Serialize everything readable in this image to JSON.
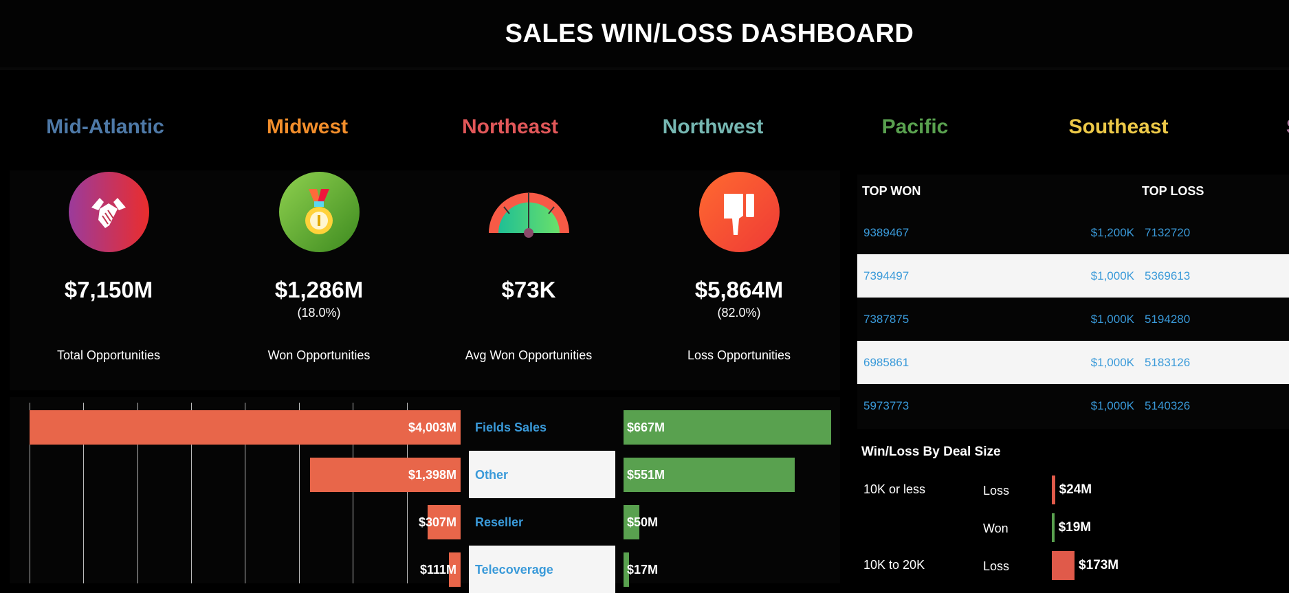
{
  "header": {
    "title": "SALES WIN/LOSS DASHBOARD"
  },
  "regions": [
    {
      "name": "Mid-Atlantic",
      "color": "#4e79a7"
    },
    {
      "name": "Midwest",
      "color": "#f28e2b"
    },
    {
      "name": "Northeast",
      "color": "#e15759"
    },
    {
      "name": "Northwest",
      "color": "#76b7b2"
    },
    {
      "name": "Pacific",
      "color": "#59a14f"
    },
    {
      "name": "Southeast",
      "color": "#edc948"
    },
    {
      "name": "So",
      "color": "#b07aa1"
    }
  ],
  "kpis": [
    {
      "icon": "handshake-icon",
      "value": "$7,150M",
      "pct": "",
      "label": "Total Opportunities"
    },
    {
      "icon": "medal-icon",
      "value": "$1,286M",
      "pct": "(18.0%)",
      "label": "Won Opportunities"
    },
    {
      "icon": "gauge-icon",
      "value": "$73K",
      "pct": "",
      "label": "Avg Won Opportunities"
    },
    {
      "icon": "thumbs-down-icon",
      "value": "$5,864M",
      "pct": "(82.0%)",
      "label": "Loss Opportunities"
    }
  ],
  "top_table": {
    "won_header": "TOP WON",
    "loss_header": "TOP LOSS",
    "rows": [
      {
        "won_id": "9389467",
        "won_value": "$1,200K",
        "loss_id": "7132720"
      },
      {
        "won_id": "7394497",
        "won_value": "$1,000K",
        "loss_id": "5369613"
      },
      {
        "won_id": "7387875",
        "won_value": "$1,000K",
        "loss_id": "5194280"
      },
      {
        "won_id": "6985861",
        "won_value": "$1,000K",
        "loss_id": "5183126"
      },
      {
        "won_id": "5973773",
        "won_value": "$1,000K",
        "loss_id": "5140326"
      }
    ]
  },
  "colors": {
    "loss": "#e8664a",
    "won": "#59a14f",
    "link": "#3a9ad9"
  },
  "chart_data": [
    {
      "type": "bar",
      "orientation": "horizontal",
      "title": "",
      "categories": [
        "Fields Sales",
        "Other",
        "Reseller",
        "Telecoverage"
      ],
      "series": [
        {
          "values": [
            4003,
            1398,
            307,
            111
          ],
          "labels": [
            "$4,003M",
            "$1,398M",
            "$307M",
            "$111M"
          ],
          "color": "#e8664a"
        },
        {
          "values": [
            667,
            551,
            50,
            17
          ],
          "labels": [
            "$667M",
            "$551M",
            "$50M",
            "$17M"
          ],
          "color": "#59a14f"
        }
      ],
      "grid": true
    },
    {
      "type": "bar",
      "orientation": "horizontal",
      "title": "Win/Loss By Deal Size",
      "groups": [
        {
          "name": "10K or less",
          "items": [
            {
              "status": "Loss",
              "value": 24,
              "label": "$24M"
            },
            {
              "status": "Won",
              "value": 19,
              "label": "$19M"
            }
          ]
        },
        {
          "name": "10K to 20K",
          "items": [
            {
              "status": "Loss",
              "value": 173,
              "label": "$173M"
            }
          ]
        }
      ]
    }
  ]
}
